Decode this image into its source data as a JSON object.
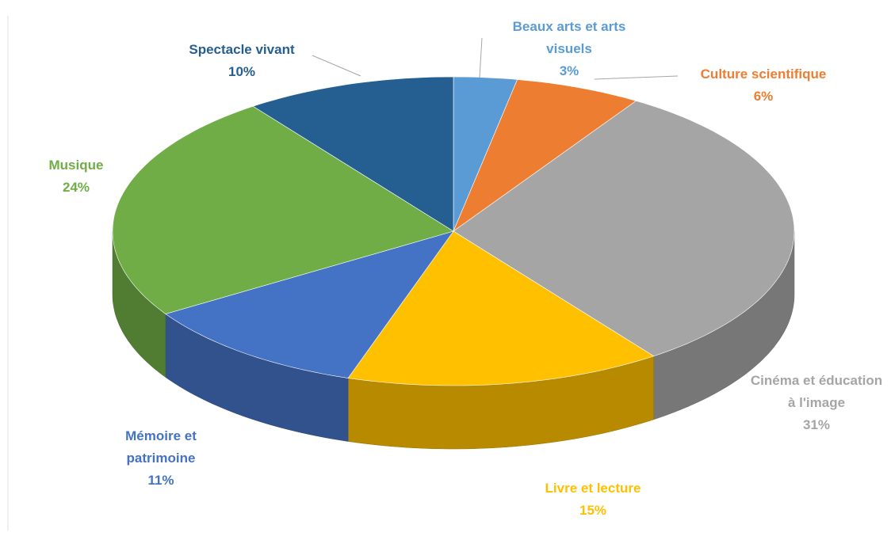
{
  "chart_data": {
    "type": "pie",
    "categories": [
      "Beaux arts et arts visuels",
      "Culture scientifique",
      "Cinéma et éducation à l'image",
      "Livre et lecture",
      "Mémoire et patrimoine",
      "Musique",
      "Spectacle vivant"
    ],
    "values": [
      3,
      6,
      31,
      15,
      11,
      24,
      10
    ],
    "value_labels": [
      "3%",
      "6%",
      "31%",
      "15%",
      "11%",
      "24%",
      "10%"
    ],
    "colors": [
      "#5b9bd5",
      "#ed7d31",
      "#a5a5a5",
      "#ffc000",
      "#4472c4",
      "#70ad47",
      "#255e91"
    ]
  }
}
